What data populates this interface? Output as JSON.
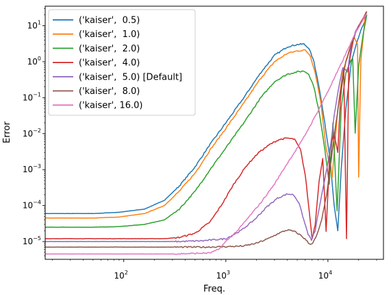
{
  "chart_data": {
    "type": "line",
    "title": "",
    "xlabel": "Freq.",
    "ylabel": "Error",
    "xscale": "log",
    "yscale": "log",
    "xlim": [
      17,
      35000
    ],
    "ylim": [
      3.2e-06,
      35
    ],
    "grid": false,
    "legend_position": "top-left",
    "xticks": [
      {
        "value": 100,
        "base": "10",
        "exp": "2"
      },
      {
        "value": 1000,
        "base": "10",
        "exp": "3"
      },
      {
        "value": 10000,
        "base": "10",
        "exp": "4"
      }
    ],
    "yticks": [
      {
        "value": 1e-05,
        "base": "10",
        "exp": "−5"
      },
      {
        "value": 0.0001,
        "base": "10",
        "exp": "−4"
      },
      {
        "value": 0.001,
        "base": "10",
        "exp": "−3"
      },
      {
        "value": 0.01,
        "base": "10",
        "exp": "−2"
      },
      {
        "value": 0.1,
        "base": "10",
        "exp": "−1"
      },
      {
        "value": 1,
        "base": "10",
        "exp": "0"
      },
      {
        "value": 10,
        "base": "10",
        "exp": "1"
      }
    ],
    "series": [
      {
        "name": "('kaiser',  0.5)",
        "color": "#1f77b4",
        "points": [
          [
            17,
            6e-05
          ],
          [
            50,
            6e-05
          ],
          [
            90,
            6.5e-05
          ],
          [
            160,
            8e-05
          ],
          [
            250,
            0.00014
          ],
          [
            350,
            0.00035
          ],
          [
            500,
            0.0012
          ],
          [
            700,
            0.005
          ],
          [
            1000,
            0.02
          ],
          [
            1500,
            0.1
          ],
          [
            2200,
            0.5
          ],
          [
            3000,
            1.5
          ],
          [
            4000,
            2.6
          ],
          [
            5000,
            3.0
          ],
          [
            5800,
            3.1
          ],
          [
            6500,
            2.4
          ],
          [
            7300,
            1.0
          ],
          [
            8200,
            0.2
          ],
          [
            9300,
            0.02
          ],
          [
            10500,
            0.002
          ],
          [
            11500,
            0.0001
          ],
          [
            12500,
            2e-05
          ],
          [
            13500,
            0.001
          ],
          [
            15000,
            0.05
          ],
          [
            17000,
            1
          ],
          [
            19000,
            3
          ],
          [
            20500,
            6
          ],
          [
            22000,
            10
          ],
          [
            24000,
            20
          ]
        ]
      },
      {
        "name": "('kaiser',  1.0)",
        "color": "#ff7f0e",
        "points": [
          [
            17,
            4.5e-05
          ],
          [
            50,
            4.5e-05
          ],
          [
            90,
            4.8e-05
          ],
          [
            160,
            6e-05
          ],
          [
            250,
            0.0001
          ],
          [
            350,
            0.00025
          ],
          [
            500,
            0.0008
          ],
          [
            700,
            0.0035
          ],
          [
            1000,
            0.014
          ],
          [
            1500,
            0.07
          ],
          [
            2200,
            0.35
          ],
          [
            3000,
            1.0
          ],
          [
            4000,
            1.7
          ],
          [
            5000,
            2.0
          ],
          [
            6000,
            2.1
          ],
          [
            6700,
            1.5
          ],
          [
            7500,
            0.5
          ],
          [
            8500,
            0.08
          ],
          [
            9600,
            0.004
          ],
          [
            11000,
            0.0006
          ],
          [
            12500,
            0.05
          ],
          [
            14000,
            0.5
          ],
          [
            16000,
            2
          ],
          [
            18000,
            5
          ],
          [
            19500,
            3
          ],
          [
            20000,
            0.0006
          ],
          [
            21000,
            1
          ],
          [
            23000,
            15
          ],
          [
            24000,
            25
          ]
        ]
      },
      {
        "name": "('kaiser',  2.0)",
        "color": "#2ca02c",
        "points": [
          [
            17,
            2.5e-05
          ],
          [
            50,
            2.5e-05
          ],
          [
            90,
            2.6e-05
          ],
          [
            160,
            3e-05
          ],
          [
            250,
            4e-05
          ],
          [
            350,
            8e-05
          ],
          [
            500,
            0.00025
          ],
          [
            700,
            0.001
          ],
          [
            1000,
            0.004
          ],
          [
            1500,
            0.02
          ],
          [
            2200,
            0.1
          ],
          [
            3000,
            0.28
          ],
          [
            4000,
            0.45
          ],
          [
            5000,
            0.52
          ],
          [
            5800,
            0.55
          ],
          [
            6500,
            0.45
          ],
          [
            7300,
            0.2
          ],
          [
            8200,
            0.04
          ],
          [
            9300,
            0.004
          ],
          [
            10300,
            0.0004
          ],
          [
            11200,
            0.02
          ],
          [
            12300,
            7e-05
          ],
          [
            13500,
            0.05
          ],
          [
            15000,
            0.5
          ],
          [
            16500,
            1.0
          ],
          [
            17500,
            1.2
          ],
          [
            18500,
            0.01
          ],
          [
            20000,
            0.8
          ],
          [
            22000,
            5
          ],
          [
            24000,
            20
          ]
        ]
      },
      {
        "name": "('kaiser',  4.0)",
        "color": "#d62728",
        "points": [
          [
            17,
            1.2e-05
          ],
          [
            100,
            1.2e-05
          ],
          [
            250,
            1.2e-05
          ],
          [
            350,
            1.3e-05
          ],
          [
            500,
            1.7e-05
          ],
          [
            700,
            3.5e-05
          ],
          [
            900,
            0.0001
          ],
          [
            1200,
            0.0004
          ],
          [
            1600,
            0.0013
          ],
          [
            2100,
            0.003
          ],
          [
            2700,
            0.005
          ],
          [
            3300,
            0.0068
          ],
          [
            4000,
            0.0075
          ],
          [
            4700,
            0.007
          ],
          [
            5400,
            0.0035
          ],
          [
            6000,
            0.0007
          ],
          [
            6600,
            6e-05
          ],
          [
            7000,
            1.2e-05
          ],
          [
            7500,
            3e-05
          ],
          [
            8200,
            0.0005
          ],
          [
            8900,
            0.002
          ],
          [
            9600,
            2e-05
          ],
          [
            10500,
            0.004
          ],
          [
            11500,
            0.01
          ],
          [
            12500,
            0.003
          ],
          [
            13300,
            0.1
          ],
          [
            14300,
            0.6
          ],
          [
            15200,
            1.2e-05
          ],
          [
            16000,
            0.8
          ],
          [
            18000,
            5
          ],
          [
            20000,
            10
          ],
          [
            23000,
            20
          ]
        ]
      },
      {
        "name": "('kaiser',  5.0) [Default]",
        "color": "#9467bd",
        "points": [
          [
            17,
            1e-05
          ],
          [
            150,
            1e-05
          ],
          [
            350,
            1e-05
          ],
          [
            600,
            1.05e-05
          ],
          [
            1000,
            1.2e-05
          ],
          [
            1400,
            2e-05
          ],
          [
            1900,
            4e-05
          ],
          [
            2500,
            9e-05
          ],
          [
            3200,
            0.00016
          ],
          [
            4000,
            0.00021
          ],
          [
            4600,
            0.0002
          ],
          [
            5200,
            0.00012
          ],
          [
            5800,
            4e-05
          ],
          [
            6400,
            1.6e-05
          ],
          [
            6900,
            1.1e-05
          ],
          [
            7500,
            2e-05
          ],
          [
            8300,
            0.0001
          ],
          [
            9300,
            0.0005
          ],
          [
            10400,
            0.003
          ],
          [
            11500,
            0.03
          ],
          [
            12800,
            0.2
          ],
          [
            14000,
            0.7
          ],
          [
            15500,
            0.5
          ],
          [
            17000,
            3
          ],
          [
            19000,
            8
          ],
          [
            21000,
            12
          ],
          [
            24000,
            20
          ]
        ]
      },
      {
        "name": "('kaiser',  8.0)",
        "color": "#8c564b",
        "points": [
          [
            17,
            7e-06
          ],
          [
            200,
            7e-06
          ],
          [
            600,
            7e-06
          ],
          [
            1000,
            7.2e-06
          ],
          [
            1500,
            7.5e-06
          ],
          [
            2000,
            9e-06
          ],
          [
            2600,
            1.2e-05
          ],
          [
            3300,
            1.7e-05
          ],
          [
            4000,
            2.1e-05
          ],
          [
            4700,
            1.9e-05
          ],
          [
            5400,
            1.5e-05
          ],
          [
            6100,
            1.1e-05
          ],
          [
            6600,
            8.5e-06
          ],
          [
            7100,
            9e-06
          ],
          [
            7800,
            1.5e-05
          ],
          [
            8700,
            4e-05
          ],
          [
            9700,
            0.0002
          ],
          [
            10800,
            0.002
          ],
          [
            12000,
            0.02
          ],
          [
            13500,
            0.2
          ],
          [
            15000,
            1
          ],
          [
            17000,
            3
          ],
          [
            19000,
            7
          ],
          [
            21000,
            12
          ],
          [
            24000,
            25
          ]
        ]
      },
      {
        "name": "('kaiser', 16.0)",
        "color": "#e377c2",
        "points": [
          [
            17,
            4.5e-06
          ],
          [
            300,
            4.5e-06
          ],
          [
            700,
            4.8e-06
          ],
          [
            850,
            6e-06
          ],
          [
            1000,
            1e-05
          ],
          [
            1300,
            2e-05
          ],
          [
            1700,
            5e-05
          ],
          [
            2200,
            0.00012
          ],
          [
            3000,
            0.0004
          ],
          [
            4000,
            0.0015
          ],
          [
            5500,
            0.006
          ],
          [
            7500,
            0.03
          ],
          [
            10000,
            0.15
          ],
          [
            13000,
            0.7
          ],
          [
            16000,
            2.5
          ],
          [
            19000,
            7
          ],
          [
            22000,
            15
          ],
          [
            24000,
            22
          ]
        ]
      }
    ]
  }
}
